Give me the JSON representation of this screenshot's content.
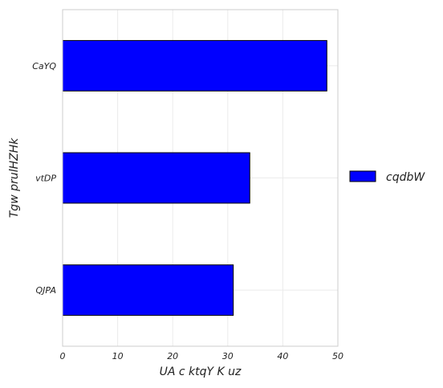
{
  "chart_data": {
    "type": "bar",
    "orientation": "horizontal",
    "categories": [
      "QJPA",
      "vtDP",
      "CaYQ"
    ],
    "series": [
      {
        "name": "cqdbW",
        "values": [
          31,
          34,
          48
        ],
        "color": "#0000ff"
      }
    ],
    "xlabel": "UA c ktqY K uz",
    "ylabel": "Tgw prulHZHk",
    "xlim": [
      0,
      50
    ],
    "xticks": [
      0,
      10,
      20,
      30,
      40,
      50
    ],
    "grid": true,
    "legend_position": "right"
  }
}
